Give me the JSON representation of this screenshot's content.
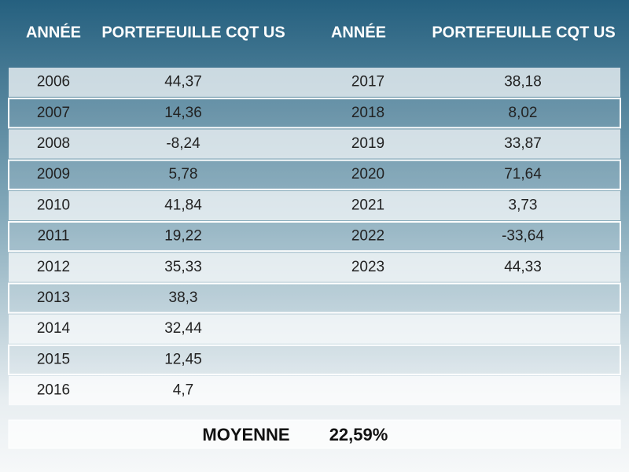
{
  "header": {
    "columns": [
      "ANNÉE",
      "PORTEFEUILLE CQT US",
      "ANNÉE",
      "PORTEFEUILLE CQT US"
    ]
  },
  "table": {
    "left_rows": [
      [
        "2006",
        "44,37"
      ],
      [
        "2007",
        "14,36"
      ],
      [
        "2008",
        "-8,24"
      ],
      [
        "2009",
        "5,78"
      ],
      [
        "2010",
        "41,84"
      ],
      [
        "2011",
        "19,22"
      ],
      [
        "2012",
        "35,33"
      ],
      [
        "2013",
        "38,3"
      ],
      [
        "2014",
        "32,44"
      ],
      [
        "2015",
        "12,45"
      ],
      [
        "2016",
        "4,7"
      ]
    ],
    "right_rows": [
      [
        "2017",
        "38,18"
      ],
      [
        "2018",
        "8,02"
      ],
      [
        "2019",
        "33,87"
      ],
      [
        "2020",
        "71,64"
      ],
      [
        "2021",
        "3,73"
      ],
      [
        "2022",
        "-33,64"
      ],
      [
        "2023",
        "44,33"
      ]
    ]
  },
  "footer": {
    "label": "MOYENNE",
    "value": "22,59%"
  }
}
